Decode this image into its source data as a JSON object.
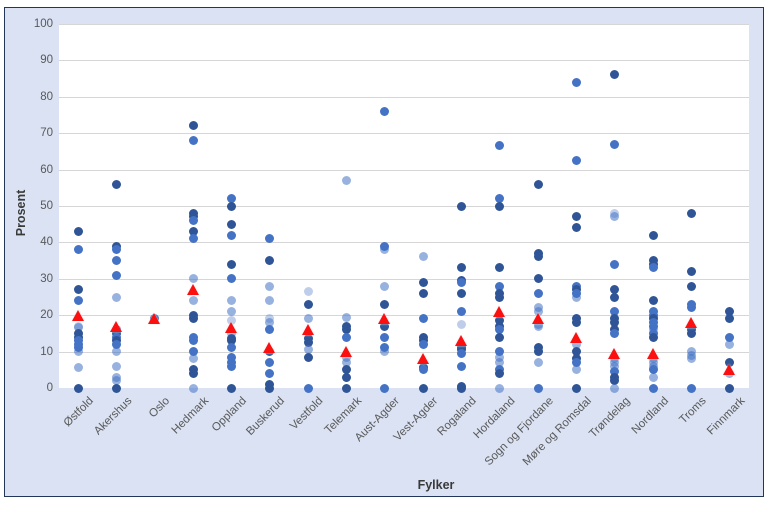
{
  "chart_data": {
    "type": "scatter",
    "title": "",
    "xlabel": "Fylker",
    "ylabel": "Prosent",
    "ylim": [
      0,
      100
    ],
    "yticks": [
      0,
      10,
      20,
      30,
      40,
      50,
      60,
      70,
      80,
      90,
      100
    ],
    "grid": true,
    "legend": false,
    "colors": {
      "chart_background": "#dae2f3",
      "plot_background": "#ffffff",
      "gridline": "#d6d6d6",
      "border": "#22365a",
      "point_blue": "#4472c4",
      "point_blue_dark": "#2f5597",
      "mean_red": "#fb0f0f",
      "tick_text": "#595959",
      "axis_title_text": "#3a3a3a"
    },
    "categories": [
      "Østfold",
      "Akershus",
      "Oslo",
      "Hedmark",
      "Oppland",
      "Buskerud",
      "Vestfold",
      "Telemark",
      "Aust-Agder",
      "Vest-Agder",
      "Rogaland",
      "Hordaland",
      "Sogn og Fjordane",
      "Møre og Romsdal",
      "Trøndelag",
      "Nordland",
      "Troms",
      "Finnmark"
    ],
    "series": [
      {
        "name": "Østfold",
        "mean": 20,
        "points": [
          [
            43,
            1
          ],
          [
            38,
            0.8
          ],
          [
            27,
            1
          ],
          [
            24,
            0.8
          ],
          [
            17,
            0.35
          ],
          [
            16.5,
            0.55
          ],
          [
            15,
            1
          ],
          [
            14,
            1
          ],
          [
            13,
            0.8
          ],
          [
            12,
            0.8
          ],
          [
            11,
            0.8
          ],
          [
            10,
            0.55
          ],
          [
            5.5,
            0.55
          ],
          [
            0,
            1
          ]
        ]
      },
      {
        "name": "Akershus",
        "mean": 17,
        "points": [
          [
            56,
            1
          ],
          [
            39,
            1
          ],
          [
            38,
            0.8
          ],
          [
            35,
            0.8
          ],
          [
            31,
            0.8
          ],
          [
            25,
            0.55
          ],
          [
            16,
            0.8
          ],
          [
            15,
            1
          ],
          [
            14,
            0.8
          ],
          [
            13,
            1
          ],
          [
            12,
            0.8
          ],
          [
            10,
            0.55
          ],
          [
            6,
            0.55
          ],
          [
            3,
            0.55
          ],
          [
            2,
            0.55
          ],
          [
            0,
            1
          ]
        ]
      },
      {
        "name": "Oslo",
        "mean": 19,
        "points": [
          [
            19,
            0.8
          ]
        ]
      },
      {
        "name": "Hedmark",
        "mean": 27,
        "points": [
          [
            72,
            1
          ],
          [
            68,
            0.8
          ],
          [
            48,
            1
          ],
          [
            47,
            1
          ],
          [
            46,
            0.8
          ],
          [
            43,
            1
          ],
          [
            41,
            0.8
          ],
          [
            30,
            0.55
          ],
          [
            24,
            0.55
          ],
          [
            20,
            1
          ],
          [
            19,
            1
          ],
          [
            14,
            0.8
          ],
          [
            13,
            0.8
          ],
          [
            10,
            0.8
          ],
          [
            8,
            0.55
          ],
          [
            5,
            1
          ],
          [
            4,
            1
          ],
          [
            0,
            0.55
          ]
        ]
      },
      {
        "name": "Oppland",
        "mean": 16.5,
        "points": [
          [
            52,
            0.8
          ],
          [
            50,
            1
          ],
          [
            45,
            1
          ],
          [
            42,
            0.8
          ],
          [
            34,
            1
          ],
          [
            30,
            0.8
          ],
          [
            24,
            0.55
          ],
          [
            21,
            0.55
          ],
          [
            18.5,
            0.35
          ],
          [
            15,
            0.55
          ],
          [
            13.5,
            1
          ],
          [
            13,
            1
          ],
          [
            11,
            0.8
          ],
          [
            8.5,
            0.8
          ],
          [
            7,
            0.8
          ],
          [
            6,
            0.8
          ],
          [
            0,
            1
          ]
        ]
      },
      {
        "name": "Buskerud",
        "mean": 11,
        "points": [
          [
            41,
            0.8
          ],
          [
            35,
            1
          ],
          [
            28,
            0.55
          ],
          [
            24,
            0.55
          ],
          [
            19,
            0.35
          ],
          [
            18,
            0.55
          ],
          [
            16,
            0.8
          ],
          [
            10,
            1
          ],
          [
            7,
            0.8
          ],
          [
            4,
            0.8
          ],
          [
            1,
            1
          ],
          [
            0,
            1
          ]
        ]
      },
      {
        "name": "Vestfold",
        "mean": 16,
        "points": [
          [
            26.5,
            0.35
          ],
          [
            23,
            1
          ],
          [
            19,
            0.55
          ],
          [
            13.5,
            1
          ],
          [
            12.5,
            1
          ],
          [
            10.5,
            0.55
          ],
          [
            8.5,
            1
          ],
          [
            0,
            0.8
          ]
        ]
      },
      {
        "name": "Telemark",
        "mean": 10,
        "points": [
          [
            57,
            0.55
          ],
          [
            19.5,
            0.55
          ],
          [
            17,
            1
          ],
          [
            16,
            1
          ],
          [
            14,
            0.8
          ],
          [
            8.5,
            0.55
          ],
          [
            7,
            0.55
          ],
          [
            5,
            1
          ],
          [
            3,
            1
          ],
          [
            0,
            1
          ]
        ]
      },
      {
        "name": "Aust-Agder",
        "mean": 19,
        "points": [
          [
            76,
            0.8
          ],
          [
            39,
            0.8
          ],
          [
            38,
            0.55
          ],
          [
            28,
            0.55
          ],
          [
            23,
            1
          ],
          [
            17,
            1
          ],
          [
            14,
            0.8
          ],
          [
            11,
            0.8
          ],
          [
            10,
            0.55
          ],
          [
            0,
            0.8
          ]
        ]
      },
      {
        "name": "Vest-Agder",
        "mean": 8,
        "points": [
          [
            36,
            0.55
          ],
          [
            29,
            1
          ],
          [
            26,
            1
          ],
          [
            19,
            0.8
          ],
          [
            14,
            1
          ],
          [
            13,
            1
          ],
          [
            12,
            0.8
          ],
          [
            5.5,
            1
          ],
          [
            5,
            0.8
          ],
          [
            0,
            1
          ]
        ]
      },
      {
        "name": "Rogaland",
        "mean": 13,
        "points": [
          [
            50,
            1
          ],
          [
            33,
            1
          ],
          [
            29.5,
            1
          ],
          [
            29,
            0.8
          ],
          [
            26,
            1
          ],
          [
            21,
            0.8
          ],
          [
            17.5,
            0.35
          ],
          [
            11,
            1
          ],
          [
            10.5,
            1
          ],
          [
            9.5,
            0.8
          ],
          [
            6,
            0.8
          ],
          [
            0.5,
            1
          ],
          [
            0,
            1
          ]
        ]
      },
      {
        "name": "Hordaland",
        "mean": 21,
        "points": [
          [
            66.5,
            0.8
          ],
          [
            52,
            0.8
          ],
          [
            50,
            1
          ],
          [
            33,
            1
          ],
          [
            28,
            0.8
          ],
          [
            26,
            1
          ],
          [
            25,
            1
          ],
          [
            18.5,
            1
          ],
          [
            17,
            1
          ],
          [
            16,
            0.8
          ],
          [
            14,
            1
          ],
          [
            10,
            0.8
          ],
          [
            8.5,
            0.55
          ],
          [
            7,
            0.55
          ],
          [
            5,
            0.8
          ],
          [
            4,
            1
          ],
          [
            0,
            0.55
          ]
        ]
      },
      {
        "name": "Sogn og Fjordane",
        "mean": 19,
        "points": [
          [
            56,
            1
          ],
          [
            37,
            1
          ],
          [
            36,
            1
          ],
          [
            30,
            1
          ],
          [
            26,
            0.8
          ],
          [
            22,
            0.55
          ],
          [
            21,
            0.55
          ],
          [
            17.5,
            0.55
          ],
          [
            17,
            0.55
          ],
          [
            11,
            1
          ],
          [
            10,
            1
          ],
          [
            7,
            0.55
          ],
          [
            0,
            0.8
          ]
        ]
      },
      {
        "name": "Møre og Romsdal",
        "mean": 14,
        "points": [
          [
            84,
            0.8
          ],
          [
            62.5,
            0.8
          ],
          [
            47,
            1
          ],
          [
            44,
            1
          ],
          [
            28,
            0.8
          ],
          [
            27,
            1
          ],
          [
            26,
            0.8
          ],
          [
            25,
            0.55
          ],
          [
            19,
            1
          ],
          [
            18,
            1
          ],
          [
            12,
            0.55
          ],
          [
            10,
            1
          ],
          [
            8,
            1
          ],
          [
            7,
            0.8
          ],
          [
            5,
            0.55
          ],
          [
            0,
            1
          ]
        ]
      },
      {
        "name": "Trøndelag",
        "mean": 9.5,
        "points": [
          [
            86,
            1
          ],
          [
            67,
            0.8
          ],
          [
            48,
            0.35
          ],
          [
            47,
            0.55
          ],
          [
            34,
            0.8
          ],
          [
            27,
            1
          ],
          [
            25,
            1
          ],
          [
            21,
            0.8
          ],
          [
            19,
            1
          ],
          [
            18,
            1
          ],
          [
            16,
            1
          ],
          [
            15,
            0.8
          ],
          [
            8,
            0.55
          ],
          [
            7,
            0.55
          ],
          [
            6,
            0.55
          ],
          [
            4.5,
            0.8
          ],
          [
            3,
            1
          ],
          [
            2,
            1
          ],
          [
            0,
            0.55
          ]
        ]
      },
      {
        "name": "Nordland",
        "mean": 9.5,
        "points": [
          [
            42,
            1
          ],
          [
            35,
            1
          ],
          [
            34,
            1
          ],
          [
            33,
            0.8
          ],
          [
            24,
            1
          ],
          [
            21,
            0.8
          ],
          [
            20,
            0.8
          ],
          [
            19,
            1
          ],
          [
            18,
            0.8
          ],
          [
            17,
            0.8
          ],
          [
            16,
            0.55
          ],
          [
            15,
            0.8
          ],
          [
            14,
            1
          ],
          [
            8,
            0.55
          ],
          [
            7,
            0.55
          ],
          [
            6,
            0.55
          ],
          [
            5,
            0.8
          ],
          [
            3,
            0.55
          ],
          [
            0,
            0.8
          ]
        ]
      },
      {
        "name": "Troms",
        "mean": 18,
        "points": [
          [
            48,
            1
          ],
          [
            32,
            1
          ],
          [
            28,
            1
          ],
          [
            23,
            0.8
          ],
          [
            22,
            0.8
          ],
          [
            16,
            1
          ],
          [
            15,
            1
          ],
          [
            10,
            0.55
          ],
          [
            9,
            0.55
          ],
          [
            8,
            0.55
          ],
          [
            0,
            0.8
          ]
        ]
      },
      {
        "name": "Finnmark",
        "mean": 5,
        "points": [
          [
            21,
            1
          ],
          [
            19,
            1
          ],
          [
            14,
            0.8
          ],
          [
            12,
            0.55
          ],
          [
            7,
            1
          ],
          [
            4,
            0.55
          ],
          [
            0,
            1
          ]
        ]
      }
    ]
  }
}
